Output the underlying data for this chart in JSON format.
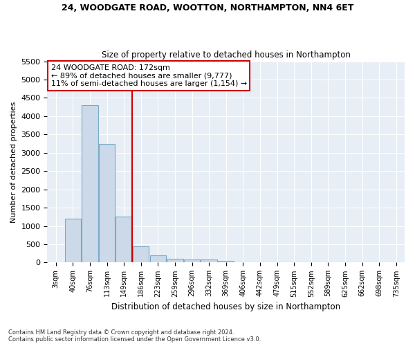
{
  "title1": "24, WOODGATE ROAD, WOOTTON, NORTHAMPTON, NN4 6ET",
  "title2": "Size of property relative to detached houses in Northampton",
  "xlabel": "Distribution of detached houses by size in Northampton",
  "ylabel": "Number of detached properties",
  "footnote1": "Contains HM Land Registry data © Crown copyright and database right 2024.",
  "footnote2": "Contains public sector information licensed under the Open Government Licence v3.0.",
  "bin_labels": [
    "3sqm",
    "40sqm",
    "76sqm",
    "113sqm",
    "149sqm",
    "186sqm",
    "223sqm",
    "259sqm",
    "296sqm",
    "332sqm",
    "369sqm",
    "406sqm",
    "442sqm",
    "479sqm",
    "515sqm",
    "552sqm",
    "589sqm",
    "625sqm",
    "662sqm",
    "698sqm",
    "735sqm"
  ],
  "bar_values": [
    0,
    1200,
    4300,
    3250,
    1250,
    450,
    200,
    100,
    75,
    75,
    50,
    0,
    0,
    0,
    0,
    0,
    0,
    0,
    0,
    0,
    0
  ],
  "bar_color": "#ccd9e8",
  "bar_edge_color": "#7aaac8",
  "ylim": [
    0,
    5500
  ],
  "yticks": [
    0,
    500,
    1000,
    1500,
    2000,
    2500,
    3000,
    3500,
    4000,
    4500,
    5000,
    5500
  ],
  "vline_color": "#cc0000",
  "vline_x": 4.5,
  "annotation_text1": "24 WOODGATE ROAD: 172sqm",
  "annotation_text2": "← 89% of detached houses are smaller (9,777)",
  "annotation_text3": "11% of semi-detached houses are larger (1,154) →",
  "annotation_box_color": "#cc0000",
  "background_color": "#ffffff",
  "plot_bg_color": "#e8eef5",
  "grid_color": "#ffffff"
}
